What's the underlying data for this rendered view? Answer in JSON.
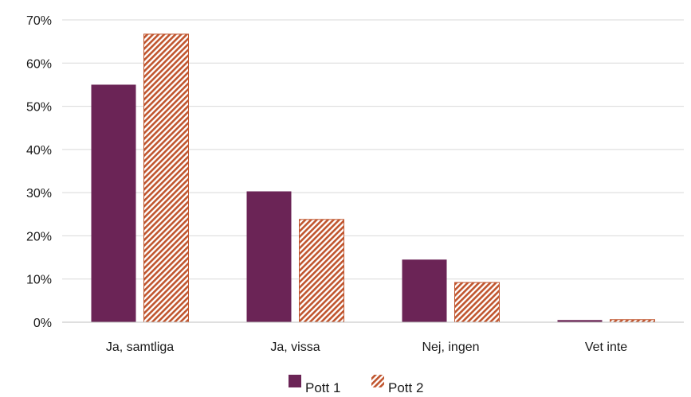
{
  "chart_data": {
    "type": "bar",
    "categories": [
      "Ja, samtliga",
      "Ja, vissa",
      "Nej, ingen",
      "Vet inte"
    ],
    "series": [
      {
        "name": "Pott 1",
        "values": [
          0.55,
          0.303,
          0.145,
          0.005
        ],
        "color": "#6b2456",
        "pattern": "solid"
      },
      {
        "name": "Pott 2",
        "values": [
          0.667,
          0.238,
          0.092,
          0.006
        ],
        "color": "#c0552e",
        "pattern": "diagonal-hatch"
      }
    ],
    "ylim": [
      0,
      0.7
    ],
    "yticks": [
      "0%",
      "10%",
      "20%",
      "30%",
      "40%",
      "50%",
      "60%",
      "70%"
    ],
    "grid": true,
    "legend": "bottom-center",
    "title": "",
    "xlabel": "",
    "ylabel": ""
  }
}
